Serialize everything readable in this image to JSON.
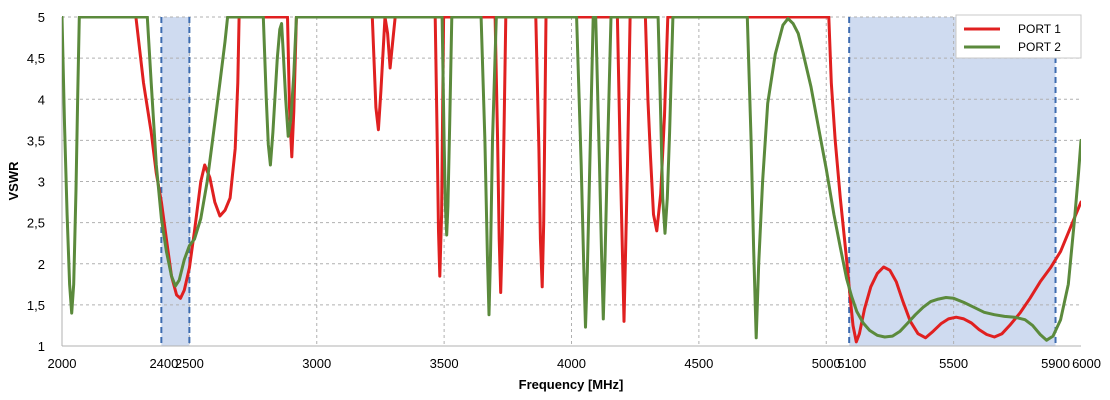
{
  "chart_data": {
    "type": "line",
    "xlabel": "Frequency [MHz]",
    "ylabel": "VSWR",
    "xlim": [
      2000,
      6000
    ],
    "ylim": [
      1,
      5
    ],
    "grid": true,
    "legend_position": "top-right",
    "x_ticks": [
      {
        "value": 2000,
        "label": "2000"
      },
      {
        "value": 2400,
        "label": "2400"
      },
      {
        "value": 2500,
        "label": "2500"
      },
      {
        "value": 3000,
        "label": "3000"
      },
      {
        "value": 3500,
        "label": "3500"
      },
      {
        "value": 4000,
        "label": "4000"
      },
      {
        "value": 4500,
        "label": "4500"
      },
      {
        "value": 5000,
        "label": "5000"
      },
      {
        "value": 5100,
        "label": "5100"
      },
      {
        "value": 5500,
        "label": "5500"
      },
      {
        "value": 5900,
        "label": "5900"
      },
      {
        "value": 6000,
        "label": "6000"
      }
    ],
    "y_ticks": [
      {
        "value": 1,
        "label": "1"
      },
      {
        "value": 1.5,
        "label": "1,5"
      },
      {
        "value": 2,
        "label": "2"
      },
      {
        "value": 2.5,
        "label": "2,5"
      },
      {
        "value": 3,
        "label": "3"
      },
      {
        "value": 3.5,
        "label": "3,5"
      },
      {
        "value": 4,
        "label": "4"
      },
      {
        "value": 4.5,
        "label": "4,5"
      },
      {
        "value": 5,
        "label": "5"
      }
    ],
    "highlight_bands": [
      [
        2390,
        2500
      ],
      [
        5090,
        5900
      ]
    ],
    "band_color": "#cfdbf0",
    "band_line_color": "#3e6cb0",
    "series": [
      {
        "name": "PORT 1",
        "color": "#e02020",
        "points": [
          [
            2290,
            5.0
          ],
          [
            2320,
            4.2
          ],
          [
            2350,
            3.6
          ],
          [
            2370,
            3.1
          ],
          [
            2390,
            2.75
          ],
          [
            2410,
            2.3
          ],
          [
            2430,
            1.85
          ],
          [
            2450,
            1.62
          ],
          [
            2465,
            1.58
          ],
          [
            2480,
            1.68
          ],
          [
            2500,
            1.95
          ],
          [
            2520,
            2.4
          ],
          [
            2545,
            3.0
          ],
          [
            2560,
            3.2
          ],
          [
            2580,
            3.05
          ],
          [
            2600,
            2.75
          ],
          [
            2620,
            2.58
          ],
          [
            2640,
            2.65
          ],
          [
            2660,
            2.8
          ],
          [
            2680,
            3.4
          ],
          [
            2690,
            4.2
          ],
          [
            2695,
            5.0
          ],
          [
            2885,
            5.0
          ],
          [
            2893,
            3.9
          ],
          [
            2902,
            3.3
          ],
          [
            2910,
            3.85
          ],
          [
            2920,
            5.0
          ],
          [
            3218,
            5.0
          ],
          [
            3232,
            3.9
          ],
          [
            3242,
            3.63
          ],
          [
            3252,
            4.1
          ],
          [
            3268,
            5.0
          ],
          [
            3278,
            4.8
          ],
          [
            3288,
            4.38
          ],
          [
            3298,
            4.7
          ],
          [
            3308,
            5.0
          ],
          [
            3465,
            5.0
          ],
          [
            3473,
            3.5
          ],
          [
            3478,
            2.4
          ],
          [
            3483,
            1.85
          ],
          [
            3490,
            2.6
          ],
          [
            3498,
            5.0
          ],
          [
            3700,
            5.0
          ],
          [
            3710,
            3.5
          ],
          [
            3716,
            2.3
          ],
          [
            3722,
            1.65
          ],
          [
            3728,
            2.3
          ],
          [
            3735,
            3.6
          ],
          [
            3742,
            5.0
          ],
          [
            3860,
            5.0
          ],
          [
            3872,
            3.4
          ],
          [
            3878,
            2.3
          ],
          [
            3885,
            1.72
          ],
          [
            3891,
            2.5
          ],
          [
            3900,
            5.0
          ],
          [
            4180,
            5.0
          ],
          [
            4192,
            3.2
          ],
          [
            4200,
            2.1
          ],
          [
            4206,
            1.3
          ],
          [
            4212,
            2.1
          ],
          [
            4220,
            3.2
          ],
          [
            4230,
            5.0
          ],
          [
            4290,
            5.0
          ],
          [
            4300,
            4.0
          ],
          [
            4310,
            3.3
          ],
          [
            4322,
            2.6
          ],
          [
            4335,
            2.4
          ],
          [
            4350,
            2.85
          ],
          [
            4365,
            3.8
          ],
          [
            4378,
            5.0
          ],
          [
            5010,
            5.0
          ],
          [
            5020,
            4.2
          ],
          [
            5035,
            3.5
          ],
          [
            5055,
            2.8
          ],
          [
            5080,
            2.05
          ],
          [
            5095,
            1.55
          ],
          [
            5105,
            1.25
          ],
          [
            5118,
            1.05
          ],
          [
            5130,
            1.15
          ],
          [
            5150,
            1.45
          ],
          [
            5175,
            1.72
          ],
          [
            5200,
            1.88
          ],
          [
            5225,
            1.96
          ],
          [
            5250,
            1.92
          ],
          [
            5275,
            1.78
          ],
          [
            5300,
            1.55
          ],
          [
            5330,
            1.3
          ],
          [
            5360,
            1.15
          ],
          [
            5390,
            1.1
          ],
          [
            5420,
            1.18
          ],
          [
            5450,
            1.27
          ],
          [
            5480,
            1.33
          ],
          [
            5510,
            1.35
          ],
          [
            5540,
            1.33
          ],
          [
            5570,
            1.28
          ],
          [
            5600,
            1.2
          ],
          [
            5630,
            1.14
          ],
          [
            5660,
            1.11
          ],
          [
            5690,
            1.15
          ],
          [
            5720,
            1.25
          ],
          [
            5760,
            1.4
          ],
          [
            5800,
            1.58
          ],
          [
            5840,
            1.78
          ],
          [
            5880,
            1.95
          ],
          [
            5920,
            2.15
          ],
          [
            5960,
            2.45
          ],
          [
            6000,
            2.75
          ]
        ]
      },
      {
        "name": "PORT 2",
        "color": "#5b8a3c",
        "points": [
          [
            2000,
            5.0
          ],
          [
            2010,
            3.7
          ],
          [
            2020,
            2.6
          ],
          [
            2030,
            1.75
          ],
          [
            2038,
            1.4
          ],
          [
            2046,
            1.75
          ],
          [
            2055,
            2.9
          ],
          [
            2062,
            4.1
          ],
          [
            2068,
            5.0
          ],
          [
            2335,
            5.0
          ],
          [
            2350,
            4.2
          ],
          [
            2370,
            3.2
          ],
          [
            2390,
            2.55
          ],
          [
            2410,
            2.15
          ],
          [
            2430,
            1.85
          ],
          [
            2445,
            1.73
          ],
          [
            2460,
            1.8
          ],
          [
            2480,
            2.05
          ],
          [
            2500,
            2.22
          ],
          [
            2520,
            2.3
          ],
          [
            2545,
            2.55
          ],
          [
            2570,
            3.0
          ],
          [
            2595,
            3.6
          ],
          [
            2620,
            4.2
          ],
          [
            2640,
            4.7
          ],
          [
            2650,
            5.0
          ],
          [
            2790,
            5.0
          ],
          [
            2802,
            4.0
          ],
          [
            2810,
            3.45
          ],
          [
            2818,
            3.2
          ],
          [
            2828,
            3.6
          ],
          [
            2845,
            4.5
          ],
          [
            2855,
            4.85
          ],
          [
            2862,
            4.92
          ],
          [
            2868,
            4.6
          ],
          [
            2878,
            4.0
          ],
          [
            2888,
            3.55
          ],
          [
            2898,
            3.75
          ],
          [
            2910,
            4.3
          ],
          [
            2920,
            5.0
          ],
          [
            3492,
            5.0
          ],
          [
            3500,
            3.5
          ],
          [
            3505,
            2.7
          ],
          [
            3510,
            2.35
          ],
          [
            3515,
            2.7
          ],
          [
            3522,
            3.7
          ],
          [
            3530,
            5.0
          ],
          [
            3645,
            5.0
          ],
          [
            3660,
            3.5
          ],
          [
            3670,
            2.1
          ],
          [
            3676,
            1.38
          ],
          [
            3682,
            2.1
          ],
          [
            3690,
            3.5
          ],
          [
            3705,
            5.0
          ],
          [
            4020,
            5.0
          ],
          [
            4038,
            3.2
          ],
          [
            4048,
            2.0
          ],
          [
            4055,
            1.23
          ],
          [
            4062,
            1.9
          ],
          [
            4072,
            3.2
          ],
          [
            4085,
            5.0
          ],
          [
            4095,
            5.0
          ],
          [
            4110,
            3.2
          ],
          [
            4118,
            2.1
          ],
          [
            4125,
            1.33
          ],
          [
            4132,
            2.1
          ],
          [
            4140,
            3.2
          ],
          [
            4155,
            5.0
          ],
          [
            4340,
            5.0
          ],
          [
            4350,
            3.8
          ],
          [
            4358,
            2.8
          ],
          [
            4367,
            2.37
          ],
          [
            4376,
            2.8
          ],
          [
            4385,
            3.6
          ],
          [
            4398,
            5.0
          ],
          [
            4690,
            5.0
          ],
          [
            4705,
            3.5
          ],
          [
            4715,
            2.2
          ],
          [
            4725,
            1.1
          ],
          [
            4735,
            2.0
          ],
          [
            4750,
            3.0
          ],
          [
            4770,
            3.95
          ],
          [
            4800,
            4.55
          ],
          [
            4830,
            4.9
          ],
          [
            4850,
            4.98
          ],
          [
            4870,
            4.92
          ],
          [
            4890,
            4.8
          ],
          [
            4910,
            4.55
          ],
          [
            4940,
            4.15
          ],
          [
            4970,
            3.65
          ],
          [
            5000,
            3.15
          ],
          [
            5030,
            2.6
          ],
          [
            5055,
            2.2
          ],
          [
            5080,
            1.82
          ],
          [
            5100,
            1.6
          ],
          [
            5120,
            1.42
          ],
          [
            5145,
            1.28
          ],
          [
            5170,
            1.19
          ],
          [
            5200,
            1.13
          ],
          [
            5230,
            1.11
          ],
          [
            5260,
            1.12
          ],
          [
            5290,
            1.18
          ],
          [
            5320,
            1.28
          ],
          [
            5350,
            1.38
          ],
          [
            5380,
            1.47
          ],
          [
            5410,
            1.54
          ],
          [
            5440,
            1.57
          ],
          [
            5470,
            1.59
          ],
          [
            5500,
            1.58
          ],
          [
            5540,
            1.53
          ],
          [
            5580,
            1.47
          ],
          [
            5620,
            1.41
          ],
          [
            5660,
            1.38
          ],
          [
            5700,
            1.36
          ],
          [
            5740,
            1.35
          ],
          [
            5780,
            1.32
          ],
          [
            5810,
            1.25
          ],
          [
            5840,
            1.14
          ],
          [
            5865,
            1.07
          ],
          [
            5890,
            1.12
          ],
          [
            5920,
            1.32
          ],
          [
            5950,
            1.75
          ],
          [
            5975,
            2.55
          ],
          [
            5990,
            3.1
          ],
          [
            6000,
            3.5
          ]
        ]
      }
    ]
  }
}
